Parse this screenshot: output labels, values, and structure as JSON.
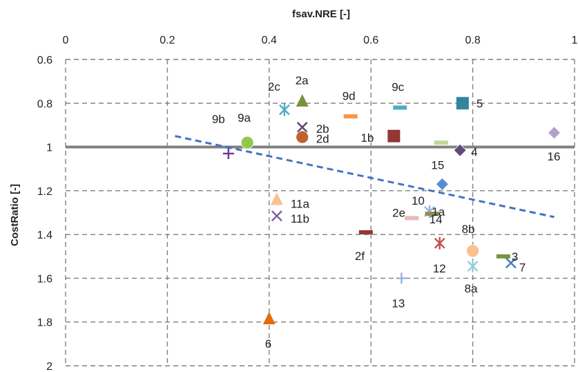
{
  "chart_data": {
    "type": "scatter",
    "title": "",
    "xlabel": "fsav.NRE [-]",
    "ylabel": "CostRatio [-]",
    "xlim": [
      0,
      1
    ],
    "ylim": [
      0.6,
      2
    ],
    "y_inverted": true,
    "x_axis_position": "top",
    "x_ticks": [
      0,
      0.2,
      0.4,
      0.6,
      0.8,
      1
    ],
    "x_tick_labels": [
      "0",
      "0.2",
      "0.4",
      "0.6",
      "0.8",
      "1"
    ],
    "y_ticks": [
      0.6,
      0.8,
      1,
      1.2,
      1.4,
      1.6,
      1.8,
      2
    ],
    "y_tick_labels": [
      "0.6",
      "0.8",
      "1",
      "1.2",
      "1.4",
      "1.6",
      "1.8",
      "2"
    ],
    "grid": true,
    "grid_style": "dashed",
    "reference_line": {
      "y": 1,
      "color": "#808080"
    },
    "trendline": {
      "x": [
        0.215,
        0.96
      ],
      "y": [
        0.95,
        1.32
      ],
      "color": "#4472C4",
      "style": "dashed"
    },
    "points": [
      {
        "label": "2c",
        "x": 0.43,
        "y": 0.83,
        "marker": "star",
        "color": "#4BACC6",
        "label_dx": -24,
        "label_dy": -28
      },
      {
        "label": "2a",
        "x": 0.465,
        "y": 0.79,
        "marker": "triangle",
        "color": "#77933C",
        "label_dx": -10,
        "label_dy": -24
      },
      {
        "label": "9d",
        "x": 0.56,
        "y": 0.86,
        "marker": "dash",
        "color": "#F79646",
        "label_dx": -12,
        "label_dy": -24
      },
      {
        "label": "9c",
        "x": 0.657,
        "y": 0.82,
        "marker": "dash",
        "color": "#4BACC6",
        "label_dx": -12,
        "label_dy": -24
      },
      {
        "label": "5",
        "x": 0.78,
        "y": 0.8,
        "marker": "square",
        "color": "#31859C",
        "label_dx": 20,
        "label_dy": 6
      },
      {
        "label": "2b",
        "x": 0.465,
        "y": 0.91,
        "marker": "x",
        "color": "#604A7B",
        "label_dx": 20,
        "label_dy": 8
      },
      {
        "label": "2d",
        "x": 0.465,
        "y": 0.955,
        "marker": "circle",
        "color": "#C0622D",
        "label_dx": 20,
        "label_dy": 8
      },
      {
        "label": "9b",
        "x": 0.32,
        "y": 1.03,
        "marker": "plus",
        "color": "#7030A0",
        "label_dx": -24,
        "label_dy": -44
      },
      {
        "label": "9a",
        "x": 0.357,
        "y": 0.98,
        "marker": "circle",
        "color": "#92C84A",
        "label_dx": -14,
        "label_dy": -30
      },
      {
        "label": "1b",
        "x": 0.645,
        "y": 0.95,
        "marker": "square",
        "color": "#943634",
        "label_dx": -48,
        "label_dy": 8
      },
      {
        "label": "",
        "x": 0.738,
        "y": 0.98,
        "marker": "dash",
        "color": "#C3D69B"
      },
      {
        "label": "4",
        "x": 0.775,
        "y": 1.015,
        "marker": "diamond",
        "color": "#604A7B",
        "label_dx": 16,
        "label_dy": 8
      },
      {
        "label": "16",
        "x": 0.96,
        "y": 0.935,
        "marker": "diamond",
        "color": "#B3A2C7",
        "label_dx": -10,
        "label_dy": 40
      },
      {
        "label": "15",
        "x": 0.74,
        "y": 1.17,
        "marker": "diamond",
        "color": "#548DD4",
        "label_dx": -16,
        "label_dy": -22
      },
      {
        "label": "11a",
        "x": 0.415,
        "y": 1.24,
        "marker": "triangle",
        "color": "#FAC090",
        "label_dx": 20,
        "label_dy": 12
      },
      {
        "label": "11b",
        "x": 0.415,
        "y": 1.315,
        "marker": "x",
        "color": "#8064A2",
        "label_dx": 20,
        "label_dy": 10
      },
      {
        "label": "2e",
        "x": 0.68,
        "y": 1.325,
        "marker": "dash",
        "color": "#E6B9B8",
        "label_dx": -28,
        "label_dy": -2
      },
      {
        "label": "10",
        "x": 0.715,
        "y": 1.295,
        "marker": "star",
        "color": "#8EB4E3",
        "label_dx": -26,
        "label_dy": -10
      },
      {
        "label": "14",
        "x": 0.72,
        "y": 1.305,
        "marker": "dash",
        "color": "#948A54",
        "label_dx": -4,
        "label_dy": 14
      },
      {
        "label": "1a",
        "x": 0.725,
        "y": 1.295,
        "marker": "none",
        "color": "#000000",
        "label_dx": -4,
        "label_dy": 6
      },
      {
        "label": "2f",
        "x": 0.59,
        "y": 1.39,
        "marker": "dash",
        "color": "#953735",
        "label_dx": -16,
        "label_dy": 40
      },
      {
        "label": "8b",
        "x": 0.8,
        "y": 1.475,
        "marker": "circle",
        "color": "#FAC090",
        "label_dx": -16,
        "label_dy": -26
      },
      {
        "label": "12",
        "x": 0.735,
        "y": 1.44,
        "marker": "star",
        "color": "#C0504D",
        "label_dx": -10,
        "label_dy": 42
      },
      {
        "label": "3",
        "x": 0.86,
        "y": 1.5,
        "marker": "dash",
        "color": "#77933C",
        "label_dx": 12,
        "label_dy": 6
      },
      {
        "label": "7",
        "x": 0.875,
        "y": 1.53,
        "marker": "x",
        "color": "#4F81BD",
        "label_dx": 12,
        "label_dy": 12
      },
      {
        "label": "8a",
        "x": 0.8,
        "y": 1.545,
        "marker": "star",
        "color": "#93CDDD",
        "label_dx": -12,
        "label_dy": 38
      },
      {
        "label": "13",
        "x": 0.66,
        "y": 1.6,
        "marker": "plus",
        "color": "#95B3D7",
        "label_dx": -14,
        "label_dy": 42
      },
      {
        "label": "6",
        "x": 0.4,
        "y": 1.785,
        "marker": "triangle",
        "color": "#E46C0A",
        "label_dx": -6,
        "label_dy": 42
      }
    ]
  }
}
